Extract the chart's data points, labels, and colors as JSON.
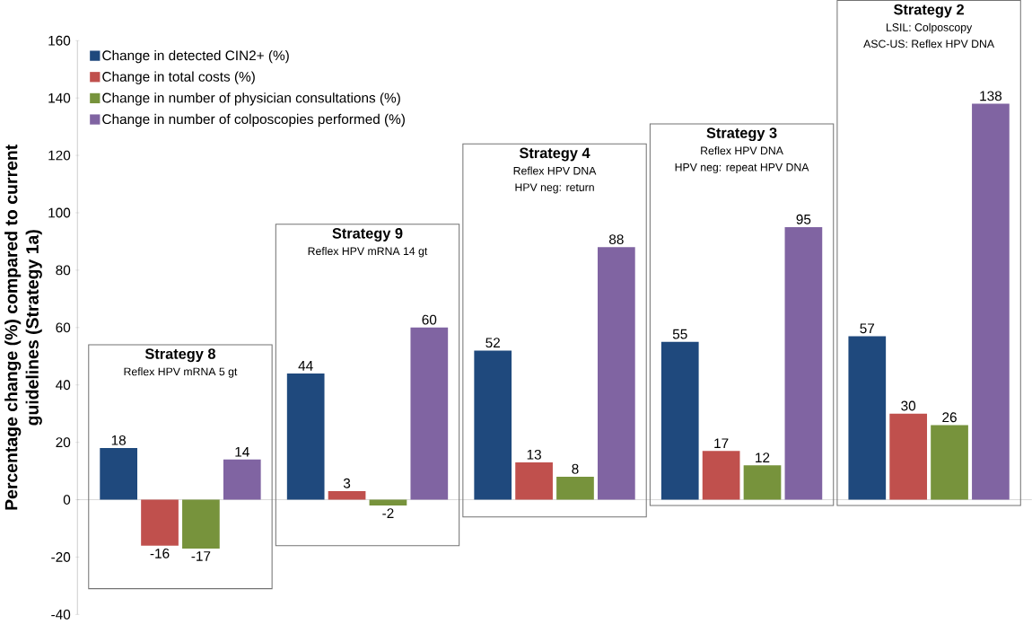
{
  "chart_data": {
    "type": "bar",
    "ylabel": "Percentage change (%)  compared to current guidelines  (Strategy 1a)",
    "categories": [
      "Strategy 8",
      "Strategy 9",
      "Strategy 4",
      "Strategy 3",
      "Strategy 2"
    ],
    "series": [
      {
        "name": "Change in detected CIN2+ (%)",
        "color": "#1f497d",
        "values": [
          18,
          44,
          52,
          55,
          57
        ]
      },
      {
        "name": "Change in total costs (%)",
        "color": "#c0504d",
        "values": [
          -16,
          3,
          13,
          17,
          30
        ]
      },
      {
        "name": "Change in number of physician consultations (%)",
        "color": "#77933c",
        "values": [
          -17,
          -2,
          8,
          12,
          26
        ]
      },
      {
        "name": "Change in number of colposcopies performed (%)",
        "color": "#8064a2",
        "values": [
          14,
          60,
          88,
          95,
          138
        ]
      }
    ],
    "annotations": [
      "Reflex HPV mRNA 5 gt",
      "Reflex HPV mRNA 14 gt",
      "Reflex HPV DNA",
      "HPV neg: return",
      "Reflex HPV DNA",
      "HPV neg: repeat HPV DNA",
      "LSIL: Colposcopy",
      "ASC-US: Reflex HPV DNA"
    ],
    "ylim": [
      -40,
      160
    ],
    "yticks": [
      -40,
      -20,
      0,
      20,
      40,
      60,
      80,
      100,
      120,
      140,
      160
    ],
    "data_labels": true,
    "legend": "top left"
  }
}
